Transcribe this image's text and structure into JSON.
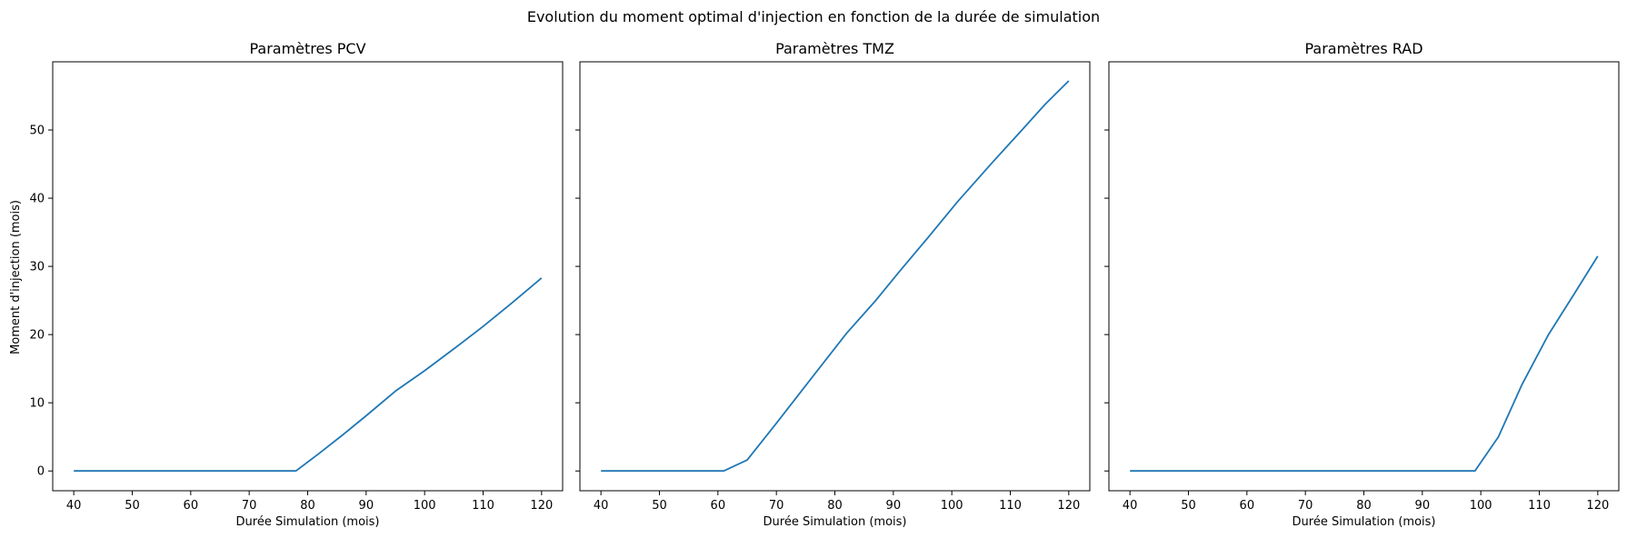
{
  "figure": {
    "suptitle": "Evolution du moment optimal d'injection en fonction de la durée de simulation",
    "ylabel": "Moment d'injection (mois)",
    "line_color": "#1f77b4"
  },
  "chart_data": [
    {
      "type": "line",
      "title": "Paramètres PCV",
      "xlabel": "Durée Simulation (mois)",
      "ylabel": "Moment d'injection (mois)",
      "xlim": [
        36.4,
        123.6
      ],
      "ylim": [
        -2.9,
        60.0
      ],
      "xticks": [
        40,
        50,
        60,
        70,
        80,
        90,
        100,
        110,
        120
      ],
      "yticks": [
        0,
        10,
        20,
        30,
        40,
        50
      ],
      "grid": false,
      "x": [
        40,
        50,
        60,
        70,
        78,
        82,
        86,
        90,
        95,
        100,
        105,
        110,
        115,
        120
      ],
      "y": [
        0,
        0,
        0,
        0,
        0,
        2.6,
        5.3,
        8.1,
        11.7,
        14.7,
        17.9,
        21.2,
        24.7,
        28.3
      ]
    },
    {
      "type": "line",
      "title": "Paramètres TMZ",
      "xlabel": "Durée Simulation (mois)",
      "ylabel": "",
      "xlim": [
        36.4,
        123.6
      ],
      "ylim": [
        -2.9,
        60.0
      ],
      "xticks": [
        40,
        50,
        60,
        70,
        80,
        90,
        100,
        110,
        120
      ],
      "yticks": [
        0,
        10,
        20,
        30,
        40,
        50
      ],
      "grid": false,
      "x": [
        40,
        50,
        61,
        65,
        70,
        75,
        82,
        87,
        91,
        96,
        101,
        107,
        112,
        116,
        120
      ],
      "y": [
        0,
        0,
        0,
        1.6,
        7.0,
        12.5,
        20.2,
        25.0,
        29.2,
        34.3,
        39.5,
        45.3,
        50.0,
        53.8,
        57.2
      ]
    },
    {
      "type": "line",
      "title": "Paramètres RAD",
      "xlabel": "Durée Simulation (mois)",
      "ylabel": "",
      "xlim": [
        36.4,
        123.6
      ],
      "ylim": [
        -2.9,
        60.0
      ],
      "xticks": [
        40,
        50,
        60,
        70,
        80,
        90,
        100,
        110,
        120
      ],
      "yticks": [
        0,
        10,
        20,
        30,
        40,
        50
      ],
      "grid": false,
      "x": [
        40,
        50,
        60,
        70,
        80,
        90,
        99,
        103,
        107,
        111.5,
        116,
        120
      ],
      "y": [
        0,
        0,
        0,
        0,
        0,
        0,
        0,
        5.0,
        12.6,
        19.9,
        26.0,
        31.5
      ]
    }
  ]
}
